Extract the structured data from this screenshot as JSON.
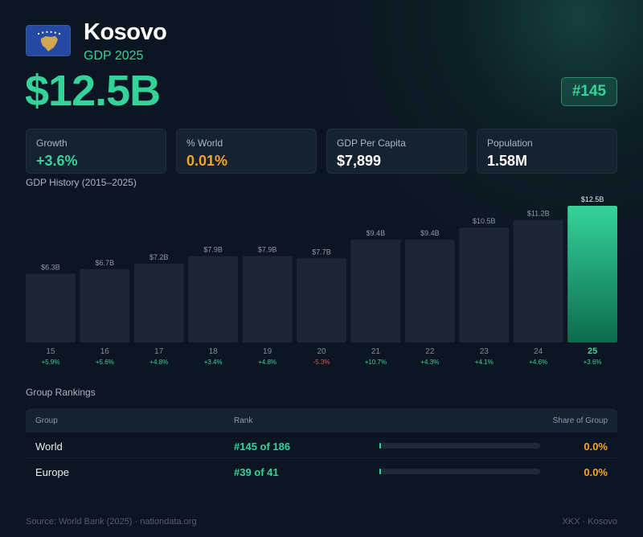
{
  "header": {
    "country": "Kosovo",
    "subtitle": "GDP 2025",
    "gdp": "$12.5B",
    "rank_badge": "#145"
  },
  "flag": {
    "icon": "kosovo-flag-icon",
    "colors": {
      "field": "#244AA5",
      "map": "#D0A650",
      "stars": "#FFFFFF"
    }
  },
  "stats": [
    {
      "label": "Growth",
      "value": "+3.6%",
      "color": "#34d399"
    },
    {
      "label": "% World",
      "value": "0.01%",
      "color": "#f5a524"
    },
    {
      "label": "GDP Per Capita",
      "value": "$7,899",
      "color": "#ffffff"
    },
    {
      "label": "Population",
      "value": "1.58M",
      "color": "#ffffff"
    }
  ],
  "chart_title": "GDP History (2015–2025)",
  "chart_data": {
    "type": "bar",
    "title": "GDP History (2015–2025)",
    "categories": [
      "15",
      "16",
      "17",
      "18",
      "19",
      "20",
      "21",
      "22",
      "23",
      "24",
      "25"
    ],
    "values": [
      6.3,
      6.7,
      7.2,
      7.9,
      7.9,
      7.7,
      9.4,
      9.4,
      10.5,
      11.2,
      12.5
    ],
    "value_labels": [
      "$6.3B",
      "$6.7B",
      "$7.2B",
      "$7.9B",
      "$7.9B",
      "$7.7B",
      "$9.4B",
      "$9.4B",
      "$10.5B",
      "$11.2B",
      "$12.5B"
    ],
    "growth_labels": [
      "+5.9%",
      "+5.6%",
      "+4.8%",
      "+3.4%",
      "+4.8%",
      "-5.3%",
      "+10.7%",
      "+4.3%",
      "+4.1%",
      "+4.6%",
      "+3.6%"
    ],
    "highlight_index": 10,
    "units": "billion USD",
    "grid": false,
    "colors": {
      "bar": "#1b2733",
      "highlight_top": "#34d399",
      "highlight_bottom": "#0d6b4e",
      "positive": "#34d399",
      "negative": "#ef5350"
    }
  },
  "rankings": {
    "title": "Group Rankings",
    "headers": {
      "group": "Group",
      "rank": "Rank",
      "share": "Share of Group"
    },
    "rows": [
      {
        "group": "World",
        "rank": "#145 of 186",
        "share": "0.0%",
        "share_fraction": 0.0
      },
      {
        "group": "Europe",
        "rank": "#39 of 41",
        "share": "0.0%",
        "share_fraction": 0.0
      }
    ]
  },
  "footer": {
    "source": "Source: World Bank (2025) · nationdata.org",
    "code": "XKX · Kosovo"
  }
}
